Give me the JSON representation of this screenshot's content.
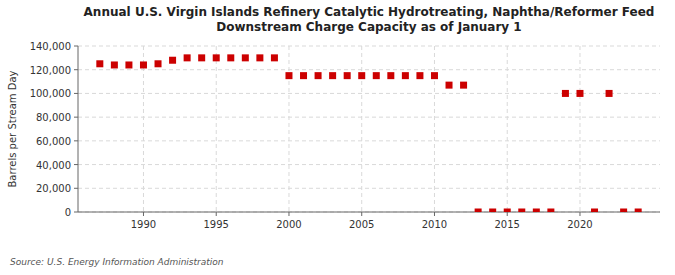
{
  "chart_data": {
    "type": "scatter",
    "title": "Annual U.S. Virgin Islands Refinery Catalytic Hydrotreating, Naphtha/Reformer Feed\nDownstream Charge Capacity as of January 1",
    "ylabel": "Barrels per Stream Day",
    "source": "Source: U.S. Energy Information Administration",
    "x": [
      1987,
      1988,
      1989,
      1990,
      1991,
      1992,
      1993,
      1994,
      1995,
      1996,
      1997,
      1998,
      1999,
      2000,
      2001,
      2002,
      2003,
      2004,
      2005,
      2006,
      2007,
      2008,
      2009,
      2010,
      2011,
      2012,
      2013,
      2014,
      2015,
      2016,
      2017,
      2018,
      2019,
      2020,
      2021,
      2022,
      2023,
      2024
    ],
    "values": [
      125000,
      124000,
      124000,
      124000,
      125000,
      128000,
      130000,
      130000,
      130000,
      130000,
      130000,
      130000,
      130000,
      115000,
      115000,
      115000,
      115000,
      115000,
      115000,
      115000,
      115000,
      115000,
      115000,
      115000,
      107000,
      107000,
      0,
      0,
      0,
      0,
      0,
      0,
      100000,
      100000,
      0,
      100000,
      0,
      0
    ],
    "color": "#cc0000",
    "marker": "square",
    "xlim": [
      1985.5,
      2025.5
    ],
    "xticks": [
      1990,
      1995,
      2000,
      2005,
      2010,
      2015,
      2020
    ],
    "ylim": [
      0,
      140000
    ],
    "yticks": [
      0,
      {
        "value": 20000,
        "label": "20,000"
      },
      {
        "value": 40000,
        "label": "40,000"
      },
      {
        "value": 60000,
        "label": "60,000"
      },
      {
        "value": 80000,
        "label": "80,000"
      },
      {
        "value": 100000,
        "label": "100,000"
      },
      {
        "value": 120000,
        "label": "120,000"
      },
      {
        "value": 140000,
        "label": "140,000"
      }
    ],
    "grid": true
  }
}
